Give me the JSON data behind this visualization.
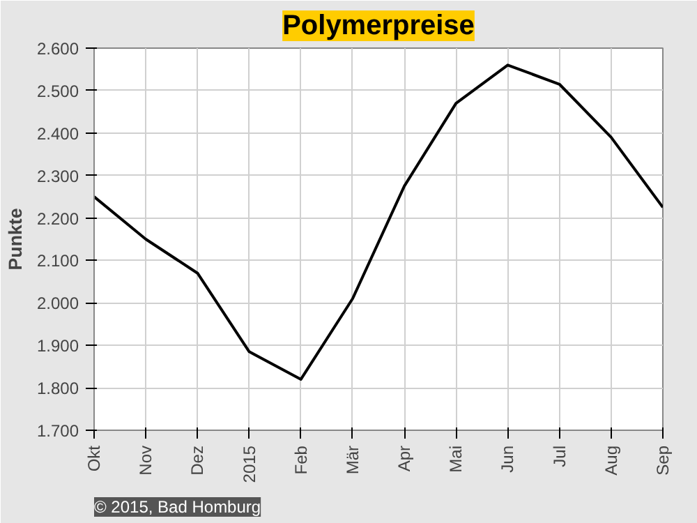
{
  "chart_data": {
    "type": "line",
    "title": "Polymerpreise",
    "ylabel": "Punkte",
    "categories": [
      "Okt",
      "Nov",
      "Dez",
      "2015",
      "Feb",
      "Mär",
      "Apr",
      "Mai",
      "Jun",
      "Jul",
      "Aug",
      "Sep"
    ],
    "series": [
      {
        "color": "#000000",
        "values": [
          2250,
          2150,
          2070,
          1885,
          1820,
          2010,
          2275,
          2470,
          2560,
          2515,
          2390,
          2225
        ]
      }
    ],
    "ylim": [
      1700,
      2600
    ],
    "yticks": [
      {
        "value": 1700,
        "label": "1.700"
      },
      {
        "value": 1800,
        "label": "1.800"
      },
      {
        "value": 1900,
        "label": "1.900"
      },
      {
        "value": 2000,
        "label": "2.000"
      },
      {
        "value": 2100,
        "label": "2.100"
      },
      {
        "value": 2200,
        "label": "2.200"
      },
      {
        "value": 2300,
        "label": "2.300"
      },
      {
        "value": 2400,
        "label": "2.400"
      },
      {
        "value": 2500,
        "label": "2.500"
      },
      {
        "value": 2600,
        "label": "2.600"
      }
    ],
    "grid": true,
    "line_style": "solid",
    "marker": "none",
    "annotations": [
      "© 2015, Bad Homburg"
    ]
  }
}
